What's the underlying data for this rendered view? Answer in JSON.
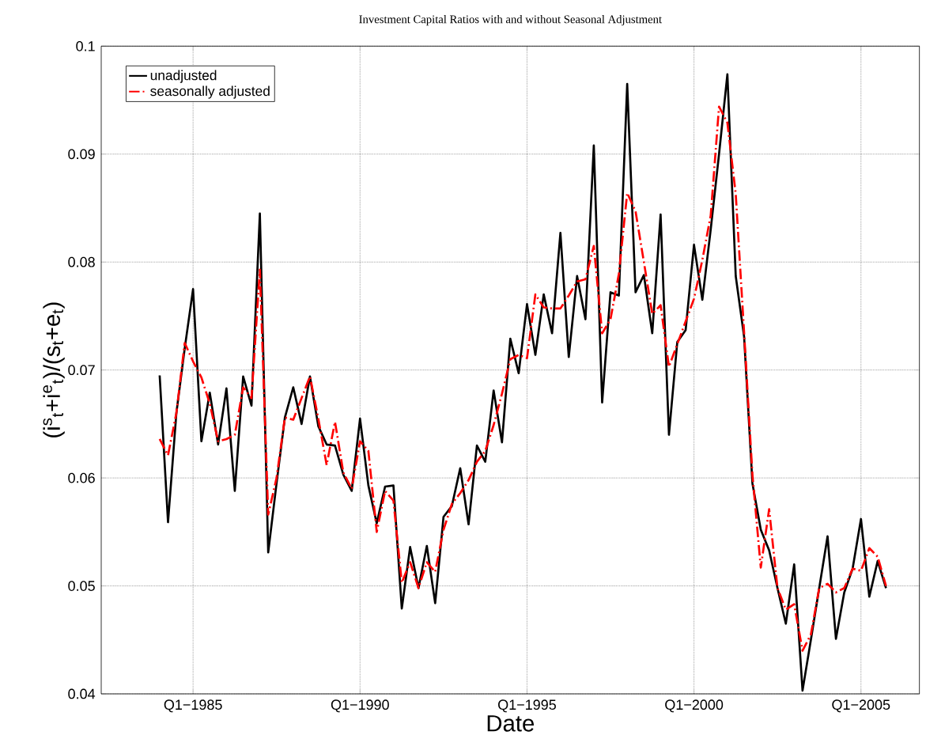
{
  "chart_data": {
    "type": "line",
    "title": "Investment Capital Ratios with and without Seasonal Adjustment",
    "xlabel": "Date",
    "ylabel": "(i$^{s}$$_{t}$+i$^{e}$$_{t}$)/(s$_{t}$+e$_{t}$)",
    "x": [
      "1984-01",
      "1984-04",
      "1984-07",
      "1984-10",
      "1985-01",
      "1985-04",
      "1985-07",
      "1985-10",
      "1986-01",
      "1986-04",
      "1986-07",
      "1986-10",
      "1987-01",
      "1987-04",
      "1987-07",
      "1987-10",
      "1988-01",
      "1988-04",
      "1988-07",
      "1988-10",
      "1989-01",
      "1989-04",
      "1989-07",
      "1989-10",
      "1990-01",
      "1990-04",
      "1990-07",
      "1990-10",
      "1991-01",
      "1991-04",
      "1991-07",
      "1991-10",
      "1992-01",
      "1992-04",
      "1992-07",
      "1992-10",
      "1993-01",
      "1993-04",
      "1993-07",
      "1993-10",
      "1994-01",
      "1994-04",
      "1994-07",
      "1994-10",
      "1995-01",
      "1995-04",
      "1995-07",
      "1995-10",
      "1996-01",
      "1996-04",
      "1996-07",
      "1996-10",
      "1997-01",
      "1997-04",
      "1997-07",
      "1997-10",
      "1998-01",
      "1998-04",
      "1998-07",
      "1998-10",
      "1999-01",
      "1999-04",
      "1999-07",
      "1999-10",
      "2000-01",
      "2000-04",
      "2000-07",
      "2000-10",
      "2001-01",
      "2001-04",
      "2001-07",
      "2001-10",
      "2002-01",
      "2002-04",
      "2002-07",
      "2002-10",
      "2003-01",
      "2003-04",
      "2003-07",
      "2003-10",
      "2004-01",
      "2004-04",
      "2004-07",
      "2004-10",
      "2005-01",
      "2005-04",
      "2005-07",
      "2005-10"
    ],
    "series": [
      {
        "name": "unadjusted",
        "color": "#000000",
        "line_style": "solid",
        "values": [
          0.0695,
          0.0559,
          0.066,
          0.072,
          0.0775,
          0.0634,
          0.0679,
          0.0631,
          0.0683,
          0.0588,
          0.0694,
          0.0667,
          0.0845,
          0.0531,
          0.0595,
          0.0656,
          0.0684,
          0.065,
          0.0694,
          0.0648,
          0.0631,
          0.063,
          0.0603,
          0.0588,
          0.0655,
          0.0593,
          0.0558,
          0.0592,
          0.0593,
          0.0479,
          0.0536,
          0.0498,
          0.0537,
          0.0484,
          0.0564,
          0.0574,
          0.0609,
          0.0557,
          0.063,
          0.0615,
          0.0681,
          0.0633,
          0.0729,
          0.0697,
          0.0761,
          0.0714,
          0.077,
          0.0734,
          0.0827,
          0.0712,
          0.0787,
          0.0747,
          0.0908,
          0.067,
          0.0772,
          0.0769,
          0.0965,
          0.0772,
          0.0788,
          0.0734,
          0.0844,
          0.064,
          0.0726,
          0.0737,
          0.0816,
          0.0765,
          0.083,
          0.09,
          0.0974,
          0.0787,
          0.0731,
          0.0595,
          0.0552,
          0.0533,
          0.0498,
          0.0465,
          0.052,
          0.0403,
          0.045,
          0.0498,
          0.0546,
          0.0451,
          0.0494,
          0.0516,
          0.0562,
          0.049,
          0.0523,
          0.0498
        ]
      },
      {
        "name": "seasonally adjusted",
        "color": "#ff0000",
        "line_style": "dashed",
        "values": [
          0.0636,
          0.0621,
          0.066,
          0.0725,
          0.0708,
          0.0693,
          0.0669,
          0.0634,
          0.0636,
          0.064,
          0.0684,
          0.0674,
          0.0793,
          0.0566,
          0.06,
          0.0656,
          0.0654,
          0.0674,
          0.0694,
          0.0655,
          0.0612,
          0.0652,
          0.0605,
          0.059,
          0.0634,
          0.0625,
          0.055,
          0.0588,
          0.0579,
          0.0503,
          0.0522,
          0.0498,
          0.0522,
          0.0513,
          0.0552,
          0.0576,
          0.0586,
          0.0598,
          0.0615,
          0.0625,
          0.0649,
          0.0678,
          0.071,
          0.0714,
          0.0711,
          0.077,
          0.0758,
          0.0757,
          0.0757,
          0.0769,
          0.0782,
          0.0784,
          0.0815,
          0.0734,
          0.0747,
          0.0789,
          0.0864,
          0.0847,
          0.08,
          0.0752,
          0.076,
          0.0703,
          0.0724,
          0.0745,
          0.0766,
          0.0802,
          0.0843,
          0.0944,
          0.0929,
          0.0863,
          0.0735,
          0.0603,
          0.0517,
          0.0571,
          0.0498,
          0.0478,
          0.0483,
          0.044,
          0.0455,
          0.0498,
          0.0502,
          0.0494,
          0.0498,
          0.0516,
          0.0514,
          0.0535,
          0.0527,
          0.05
        ]
      }
    ],
    "xlim": [
      "1982-04",
      "2006-10"
    ],
    "xticks": [
      {
        "value": "1985-01",
        "label": "Q1−1985"
      },
      {
        "value": "1990-01",
        "label": "Q1−1990"
      },
      {
        "value": "1995-01",
        "label": "Q1−1995"
      },
      {
        "value": "2000-01",
        "label": "Q1−2000"
      },
      {
        "value": "2005-01",
        "label": "Q1−2005"
      }
    ],
    "ylim": [
      0.04,
      0.1
    ],
    "yticks": [
      0.04,
      0.05,
      0.06,
      0.07,
      0.08,
      0.09,
      0.1
    ],
    "grid": true,
    "legend": "top left"
  }
}
